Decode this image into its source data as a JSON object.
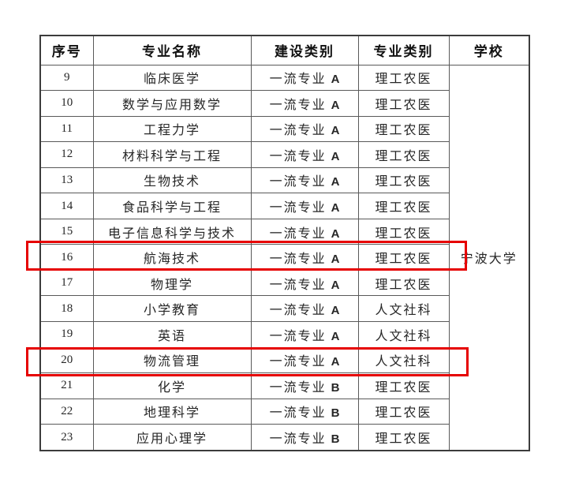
{
  "colors": {
    "highlight": "#e60000"
  },
  "table": {
    "headers": [
      "序号",
      "专业名称",
      "建设类别",
      "专业类别",
      "学校"
    ],
    "school": "宁波大学",
    "rows": [
      {
        "no": "9",
        "name": "临床医学",
        "build": "一流专业",
        "grade": "A",
        "type": "理工农医",
        "highlighted": false
      },
      {
        "no": "10",
        "name": "数学与应用数学",
        "build": "一流专业",
        "grade": "A",
        "type": "理工农医",
        "highlighted": false
      },
      {
        "no": "11",
        "name": "工程力学",
        "build": "一流专业",
        "grade": "A",
        "type": "理工农医",
        "highlighted": false
      },
      {
        "no": "12",
        "name": "材料科学与工程",
        "build": "一流专业",
        "grade": "A",
        "type": "理工农医",
        "highlighted": false
      },
      {
        "no": "13",
        "name": "生物技术",
        "build": "一流专业",
        "grade": "A",
        "type": "理工农医",
        "highlighted": false
      },
      {
        "no": "14",
        "name": "食品科学与工程",
        "build": "一流专业",
        "grade": "A",
        "type": "理工农医",
        "highlighted": false
      },
      {
        "no": "15",
        "name": "电子信息科学与技术",
        "build": "一流专业",
        "grade": "A",
        "type": "理工农医",
        "highlighted": false
      },
      {
        "no": "16",
        "name": "航海技术",
        "build": "一流专业",
        "grade": "A",
        "type": "理工农医",
        "highlighted": true
      },
      {
        "no": "17",
        "name": "物理学",
        "build": "一流专业",
        "grade": "A",
        "type": "理工农医",
        "highlighted": false
      },
      {
        "no": "18",
        "name": "小学教育",
        "build": "一流专业",
        "grade": "A",
        "type": "人文社科",
        "highlighted": false
      },
      {
        "no": "19",
        "name": "英语",
        "build": "一流专业",
        "grade": "A",
        "type": "人文社科",
        "highlighted": false
      },
      {
        "no": "20",
        "name": "物流管理",
        "build": "一流专业",
        "grade": "A",
        "type": "人文社科",
        "highlighted": true
      },
      {
        "no": "21",
        "name": "化学",
        "build": "一流专业",
        "grade": "B",
        "type": "理工农医",
        "highlighted": false
      },
      {
        "no": "22",
        "name": "地理科学",
        "build": "一流专业",
        "grade": "B",
        "type": "理工农医",
        "highlighted": false
      },
      {
        "no": "23",
        "name": "应用心理学",
        "build": "一流专业",
        "grade": "B",
        "type": "理工农医",
        "highlighted": false
      }
    ]
  }
}
